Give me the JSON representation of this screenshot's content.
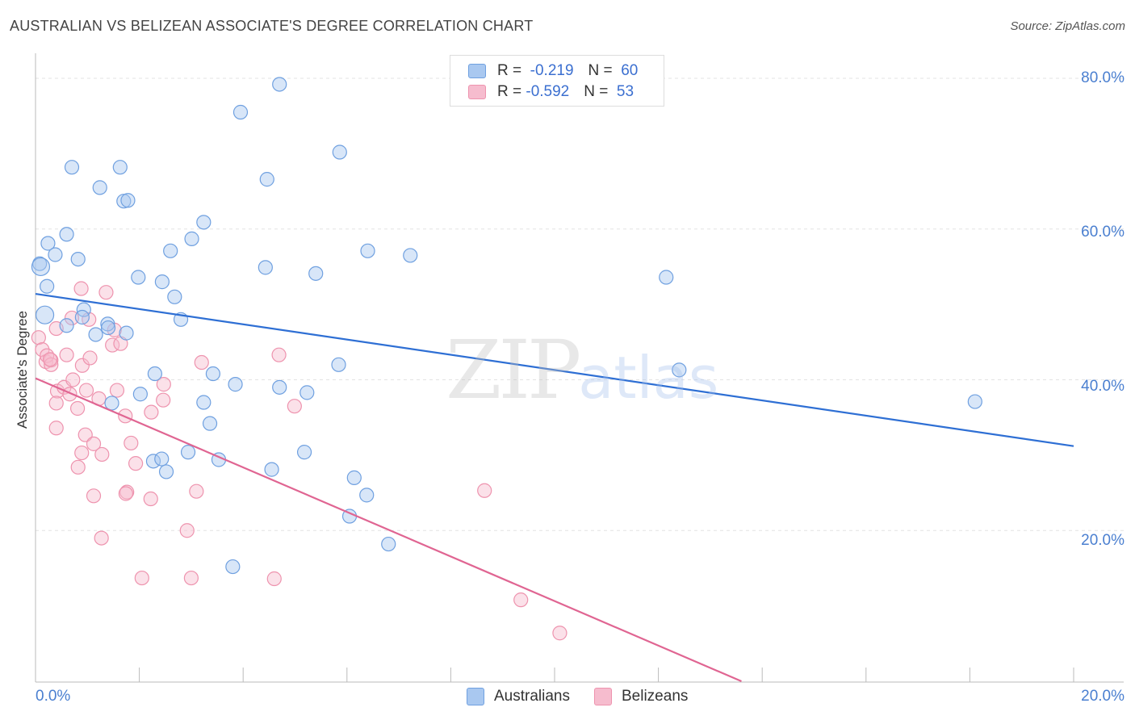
{
  "chart_data": {
    "type": "scatter",
    "title": "AUSTRALIAN VS BELIZEAN ASSOCIATE'S DEGREE CORRELATION CHART",
    "source": "Source: ZipAtlas.com",
    "xlabel": "",
    "ylabel": "Associate's Degree",
    "xlim": [
      0,
      20
    ],
    "ylim": [
      0,
      80
    ],
    "y_ticks": [
      "80.0%",
      "60.0%",
      "40.0%",
      "20.0%"
    ],
    "x_ticks": [
      "0.0%",
      "20.0%"
    ],
    "legend_position": "top-center",
    "watermark": {
      "zip": "ZIP",
      "atlas": "atlas"
    },
    "series": [
      {
        "name": "Australians",
        "color": "#6fa0e0",
        "fill": "#a9c8f0",
        "line_color": "#2e6fd4",
        "R": "-0.219",
        "N": "60",
        "trend": {
          "x0": 0,
          "y0": 51.4,
          "x1": 20,
          "y1": 31.2
        },
        "points": [
          [
            0.08,
            55.4
          ],
          [
            0.24,
            58.1
          ],
          [
            0.38,
            56.6
          ],
          [
            0.6,
            59.3
          ],
          [
            0.7,
            68.2
          ],
          [
            0.82,
            56.0
          ],
          [
            1.24,
            65.5
          ],
          [
            1.63,
            68.2
          ],
          [
            1.7,
            63.7
          ],
          [
            1.78,
            63.8
          ],
          [
            1.98,
            53.6
          ],
          [
            2.44,
            53.0
          ],
          [
            2.6,
            57.1
          ],
          [
            2.68,
            51.0
          ],
          [
            2.8,
            48.0
          ],
          [
            3.01,
            58.7
          ],
          [
            3.24,
            60.9
          ],
          [
            3.95,
            75.5
          ],
          [
            4.43,
            54.9
          ],
          [
            4.46,
            66.6
          ],
          [
            4.7,
            79.2
          ],
          [
            5.4,
            54.1
          ],
          [
            5.86,
            70.2
          ],
          [
            6.4,
            57.1
          ],
          [
            7.22,
            56.5
          ],
          [
            0.22,
            52.4
          ],
          [
            0.6,
            47.2
          ],
          [
            0.93,
            49.3
          ],
          [
            1.16,
            46.0
          ],
          [
            1.39,
            47.4
          ],
          [
            1.75,
            46.2
          ],
          [
            2.02,
            38.1
          ],
          [
            2.3,
            40.8
          ],
          [
            3.24,
            37.0
          ],
          [
            3.42,
            40.8
          ],
          [
            3.85,
            39.4
          ],
          [
            4.7,
            39.0
          ],
          [
            5.23,
            38.3
          ],
          [
            5.84,
            42.0
          ],
          [
            1.47,
            36.9
          ],
          [
            2.27,
            29.2
          ],
          [
            2.43,
            29.5
          ],
          [
            2.52,
            27.8
          ],
          [
            2.94,
            30.4
          ],
          [
            3.36,
            34.2
          ],
          [
            3.53,
            29.4
          ],
          [
            4.55,
            28.1
          ],
          [
            5.18,
            30.4
          ],
          [
            6.14,
            27.0
          ],
          [
            6.38,
            24.7
          ],
          [
            6.05,
            21.9
          ],
          [
            6.8,
            18.2
          ],
          [
            3.8,
            15.2
          ],
          [
            12.15,
            53.6
          ],
          [
            12.4,
            41.3
          ],
          [
            18.1,
            37.1
          ],
          [
            0.18,
            48.6
          ],
          [
            0.1,
            55.0
          ],
          [
            0.9,
            48.3
          ],
          [
            1.4,
            46.9
          ]
        ]
      },
      {
        "name": "Belizeans",
        "color": "#ee93ae",
        "fill": "#f6bcce",
        "line_color": "#e06592",
        "R": "-0.592",
        "N": "53",
        "trend": {
          "x0": 0,
          "y0": 40.2,
          "x1": 13.6,
          "y1": 0
        },
        "points": [
          [
            0.06,
            45.6
          ],
          [
            0.13,
            44.0
          ],
          [
            0.2,
            42.4
          ],
          [
            0.3,
            42.6
          ],
          [
            0.4,
            46.8
          ],
          [
            0.42,
            38.5
          ],
          [
            0.55,
            39.0
          ],
          [
            0.66,
            38.1
          ],
          [
            0.72,
            40.0
          ],
          [
            0.9,
            41.9
          ],
          [
            0.98,
            38.6
          ],
          [
            0.81,
            36.2
          ],
          [
            1.05,
            42.9
          ],
          [
            1.22,
            37.5
          ],
          [
            1.48,
            44.6
          ],
          [
            1.52,
            46.6
          ],
          [
            1.64,
            44.8
          ],
          [
            1.57,
            38.6
          ],
          [
            1.73,
            35.2
          ],
          [
            2.23,
            35.7
          ],
          [
            2.47,
            39.4
          ],
          [
            2.46,
            37.3
          ],
          [
            3.2,
            42.3
          ],
          [
            4.69,
            43.3
          ],
          [
            4.99,
            36.5
          ],
          [
            0.22,
            43.2
          ],
          [
            0.3,
            42.0
          ],
          [
            0.6,
            43.3
          ],
          [
            0.7,
            48.2
          ],
          [
            0.88,
            52.1
          ],
          [
            1.36,
            51.6
          ],
          [
            1.03,
            48.0
          ],
          [
            0.28,
            42.7
          ],
          [
            0.4,
            36.9
          ],
          [
            0.4,
            33.6
          ],
          [
            0.96,
            32.7
          ],
          [
            1.12,
            31.5
          ],
          [
            0.89,
            30.3
          ],
          [
            1.28,
            30.1
          ],
          [
            1.84,
            31.6
          ],
          [
            1.93,
            28.9
          ],
          [
            0.82,
            28.4
          ],
          [
            1.76,
            25.1
          ],
          [
            1.74,
            24.9
          ],
          [
            1.12,
            24.6
          ],
          [
            2.22,
            24.2
          ],
          [
            3.1,
            25.2
          ],
          [
            2.92,
            20.0
          ],
          [
            1.27,
            19.0
          ],
          [
            2.05,
            13.7
          ],
          [
            3.0,
            13.7
          ],
          [
            4.6,
            13.6
          ],
          [
            8.65,
            25.3
          ]
        ]
      }
    ],
    "extra_points": {
      "Belizeans": [
        [
          9.35,
          10.8
        ],
        [
          10.1,
          6.4
        ]
      ]
    }
  }
}
